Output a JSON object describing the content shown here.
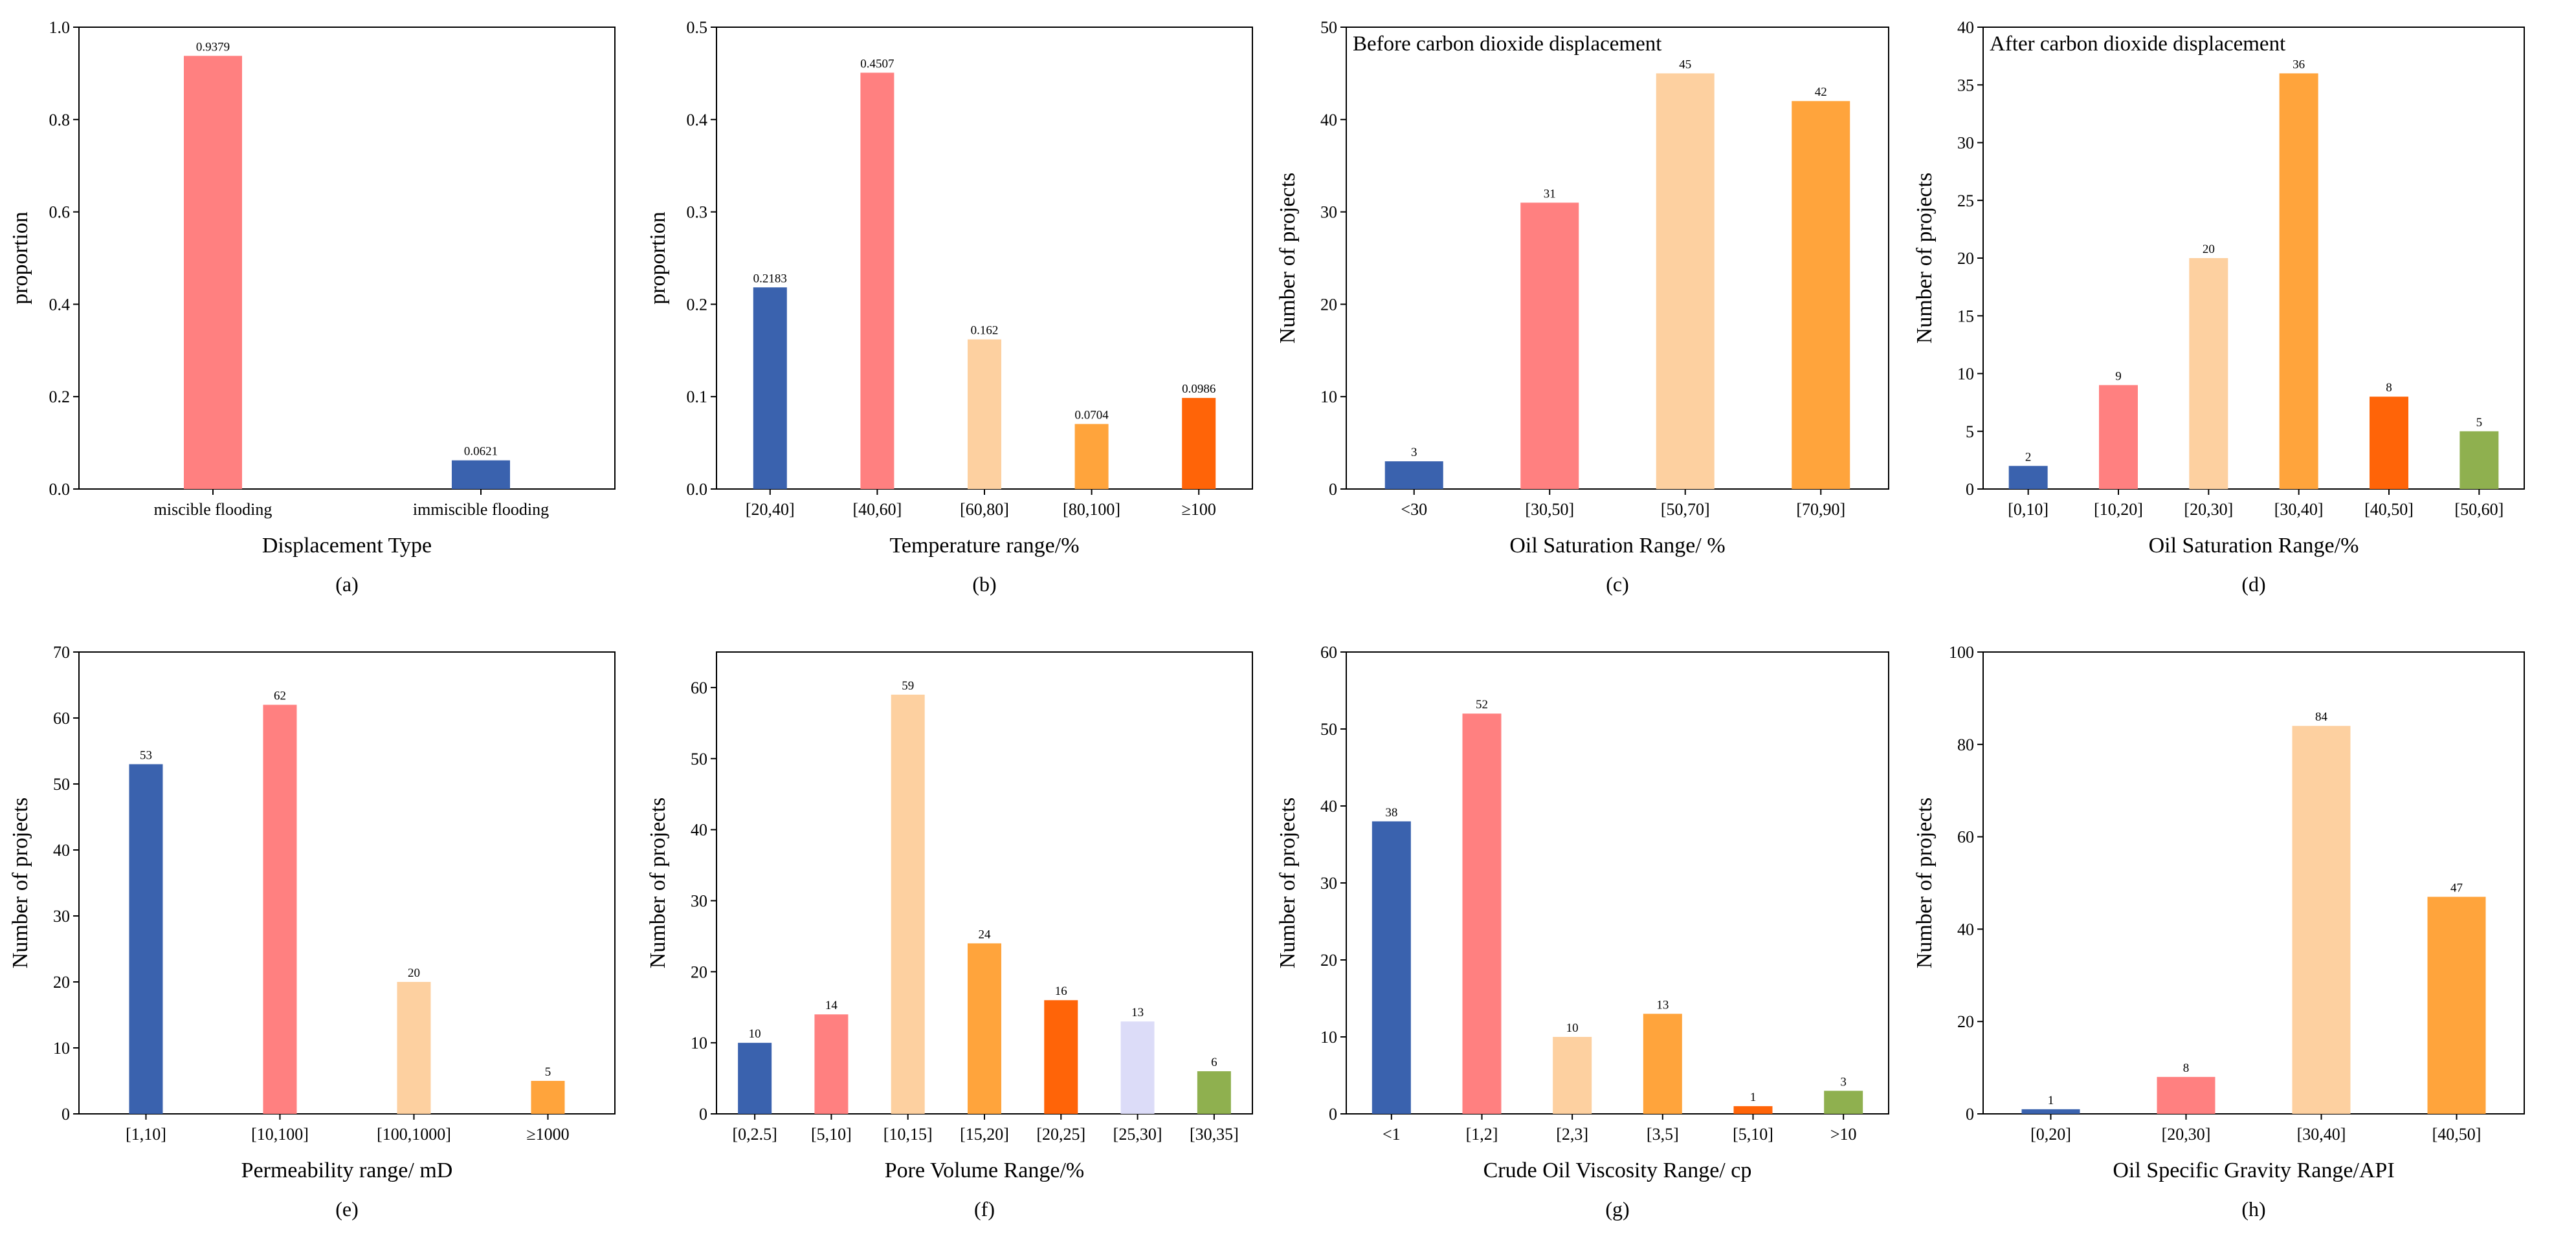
{
  "chart_data": [
    {
      "panel": "(a)",
      "type": "bar",
      "title": "",
      "xlabel": "Displacement Type",
      "ylabel": "proportion",
      "categories": [
        "miscible flooding",
        "immiscible flooding"
      ],
      "values": [
        0.9379,
        0.0621
      ],
      "value_labels": [
        "0.9379",
        "0.0621"
      ],
      "colors": [
        "#FF8080",
        "#3A62AE"
      ],
      "ylim": [
        0,
        1.0
      ],
      "yticks": [
        0.0,
        0.2,
        0.4,
        0.6,
        0.8,
        1.0
      ],
      "ytick_labels": [
        "0.0",
        "0.2",
        "0.4",
        "0.6",
        "0.8",
        "1.0"
      ]
    },
    {
      "panel": "(b)",
      "type": "bar",
      "title": "",
      "xlabel": "Temperature range/%",
      "ylabel": "proportion",
      "categories": [
        "[20,40]",
        "[40,60]",
        "[60,80]",
        "[80,100]",
        "≥100"
      ],
      "values": [
        0.2183,
        0.4507,
        0.162,
        0.0704,
        0.0986
      ],
      "value_labels": [
        "0.2183",
        "0.4507",
        "0.162",
        "0.0704",
        "0.0986"
      ],
      "colors": [
        "#3A62AE",
        "#FF8080",
        "#FDD0A0",
        "#FFA43C",
        "#FF6408"
      ],
      "ylim": [
        0,
        0.5
      ],
      "yticks": [
        0.0,
        0.1,
        0.2,
        0.3,
        0.4,
        0.5
      ],
      "ytick_labels": [
        "0.0",
        "0.1",
        "0.2",
        "0.3",
        "0.4",
        "0.5"
      ]
    },
    {
      "panel": "(c)",
      "type": "bar",
      "title": "Before carbon dioxide displacement",
      "xlabel": "Oil Saturation Range/ %",
      "ylabel": "Number of projects",
      "categories": [
        "<30",
        "[30,50]",
        "[50,70]",
        "[70,90]"
      ],
      "values": [
        3,
        31,
        45,
        42
      ],
      "value_labels": [
        "3",
        "31",
        "45",
        "42"
      ],
      "colors": [
        "#3A62AE",
        "#FF8080",
        "#FDD0A0",
        "#FFA43C"
      ],
      "ylim": [
        0,
        50
      ],
      "yticks": [
        0,
        10,
        20,
        30,
        40,
        50
      ],
      "ytick_labels": [
        "0",
        "10",
        "20",
        "30",
        "40",
        "50"
      ]
    },
    {
      "panel": "(d)",
      "type": "bar",
      "title": "After carbon dioxide displacement",
      "xlabel": "Oil Saturation Range/%",
      "ylabel": "Number of projects",
      "categories": [
        "[0,10]",
        "[10,20]",
        "[20,30]",
        "[30,40]",
        "[40,50]",
        "[50,60]"
      ],
      "values": [
        2,
        9,
        20,
        36,
        8,
        5
      ],
      "value_labels": [
        "2",
        "9",
        "20",
        "36",
        "8",
        "5"
      ],
      "colors": [
        "#3A62AE",
        "#FF8080",
        "#FDD0A0",
        "#FFA43C",
        "#FF6408",
        "#8FB04F"
      ],
      "ylim": [
        0,
        40
      ],
      "yticks": [
        0,
        5,
        10,
        15,
        20,
        25,
        30,
        35,
        40
      ],
      "ytick_labels": [
        "0",
        "5",
        "10",
        "15",
        "20",
        "25",
        "30",
        "35",
        "40"
      ]
    },
    {
      "panel": "(e)",
      "type": "bar",
      "title": "",
      "xlabel": "Permeability range/ mD",
      "ylabel": "Number of projects",
      "categories": [
        "[1,10]",
        "[10,100]",
        "[100,1000]",
        "≥1000"
      ],
      "values": [
        53,
        62,
        20,
        5
      ],
      "value_labels": [
        "53",
        "62",
        "20",
        "5"
      ],
      "colors": [
        "#3A62AE",
        "#FF8080",
        "#FDD0A0",
        "#FFA43C"
      ],
      "ylim": [
        0,
        70
      ],
      "yticks": [
        0,
        10,
        20,
        30,
        40,
        50,
        60,
        70
      ],
      "ytick_labels": [
        "0",
        "10",
        "20",
        "30",
        "40",
        "50",
        "60",
        "70"
      ]
    },
    {
      "panel": "(f)",
      "type": "bar",
      "title": "",
      "xlabel": "Pore Volume Range/%",
      "ylabel": "Number of projects",
      "categories": [
        "[0,2.5]",
        "[5,10]",
        "[10,15]",
        "[15,20]",
        "[20,25]",
        "[25,30]",
        "[30,35]"
      ],
      "values": [
        10,
        14,
        59,
        24,
        16,
        13,
        6
      ],
      "value_labels": [
        "10",
        "14",
        "59",
        "24",
        "16",
        "13",
        "6"
      ],
      "colors": [
        "#3A62AE",
        "#FF8080",
        "#FDD0A0",
        "#FFA43C",
        "#FF6408",
        "#DCDCF8",
        "#8FB04F"
      ],
      "ylim": [
        0,
        65
      ],
      "yticks": [
        0,
        10,
        20,
        30,
        40,
        50,
        60
      ],
      "ytick_labels": [
        "0",
        "10",
        "20",
        "30",
        "40",
        "50",
        "60"
      ]
    },
    {
      "panel": "(g)",
      "type": "bar",
      "title": "",
      "xlabel": "Crude Oil Viscosity Range/  cp",
      "ylabel": "Number of projects",
      "categories": [
        "<1",
        "[1,2]",
        "[2,3]",
        "[3,5]",
        "[5,10]",
        ">10"
      ],
      "values": [
        38,
        52,
        10,
        13,
        1,
        3
      ],
      "value_labels": [
        "38",
        "52",
        "10",
        "13",
        "1",
        "3"
      ],
      "colors": [
        "#3A62AE",
        "#FF8080",
        "#FDD0A0",
        "#FFA43C",
        "#FF6408",
        "#8FB04F"
      ],
      "ylim": [
        0,
        60
      ],
      "yticks": [
        0,
        10,
        20,
        30,
        40,
        50,
        60
      ],
      "ytick_labels": [
        "0",
        "10",
        "20",
        "30",
        "40",
        "50",
        "60"
      ]
    },
    {
      "panel": "(h)",
      "type": "bar",
      "title": "",
      "xlabel": "Oil Specific Gravity Range/API",
      "ylabel": "Number of projects",
      "categories": [
        "[0,20]",
        "[20,30]",
        "[30,40]",
        "[40,50]"
      ],
      "values": [
        1,
        8,
        84,
        47
      ],
      "value_labels": [
        "1",
        "8",
        "84",
        "47"
      ],
      "colors": [
        "#3A62AE",
        "#FF8080",
        "#FDD0A0",
        "#FFA43C"
      ],
      "ylim": [
        0,
        100
      ],
      "yticks": [
        0,
        20,
        40,
        60,
        80,
        100
      ],
      "ytick_labels": [
        "0",
        "20",
        "40",
        "60",
        "80",
        "100"
      ]
    }
  ]
}
